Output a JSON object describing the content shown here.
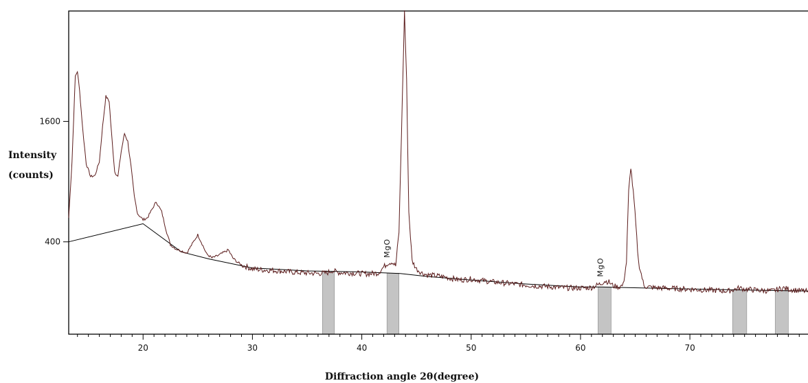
{
  "chart_data": {
    "type": "line",
    "title": "",
    "xlabel": "Diffraction angle 2θ(degree)",
    "ylabel_lines": [
      "Intensity",
      "(counts)"
    ],
    "xlim": [
      13.2,
      80.8
    ],
    "ylim": [
      -520,
      2700
    ],
    "x_ticks": [
      20,
      30,
      40,
      50,
      60,
      70
    ],
    "y_ticks": [
      400,
      1600
    ],
    "grid": false,
    "series": [
      {
        "role": "pattern",
        "x": [
          13.2,
          13.5,
          13.8,
          14.0,
          14.2,
          14.5,
          14.8,
          15.2,
          15.6,
          16.0,
          16.3,
          16.6,
          16.9,
          17.1,
          17.4,
          17.7,
          18.0,
          18.3,
          18.6,
          18.9,
          19.2,
          19.5,
          20.0,
          20.4,
          20.8,
          21.2,
          21.7,
          22.1,
          22.5,
          23.0,
          23.5,
          24.0,
          24.5,
          25.0,
          25.4,
          25.8,
          26.3,
          26.8,
          27.3,
          27.8,
          28.2,
          28.6,
          29.0,
          29.5,
          30.0,
          31.0,
          32.0,
          33.0,
          34.0,
          35.0,
          36.0,
          36.8,
          37.3,
          37.8,
          38.5,
          39.5,
          40.5,
          41.5,
          42.0,
          42.4,
          42.8,
          43.1,
          43.4,
          43.7,
          43.9,
          44.1,
          44.3,
          44.6,
          45.0,
          45.5,
          46.0,
          47.0,
          48.0,
          49.0,
          50.0,
          51.0,
          52.0,
          53.0,
          54.0,
          55.0,
          56.0,
          57.0,
          58.0,
          59.0,
          60.0,
          61.0,
          61.8,
          62.2,
          62.6,
          63.0,
          63.5,
          63.9,
          64.2,
          64.4,
          64.6,
          64.9,
          65.3,
          65.8,
          66.5,
          67.5,
          68.5,
          69.5,
          70.5,
          71.5,
          72.5,
          73.5,
          74.5,
          75.0,
          75.5,
          76.5,
          77.5,
          78.5,
          79.5,
          80.8
        ],
        "y": [
          640,
          1200,
          2050,
          2100,
          1900,
          1500,
          1180,
          1050,
          1060,
          1200,
          1550,
          1850,
          1800,
          1500,
          1100,
          1050,
          1300,
          1480,
          1400,
          1150,
          850,
          680,
          620,
          640,
          720,
          800,
          700,
          520,
          370,
          330,
          310,
          290,
          380,
          470,
          380,
          280,
          240,
          260,
          290,
          320,
          240,
          200,
          170,
          150,
          130,
          120,
          115,
          105,
          95,
          90,
          85,
          90,
          115,
          95,
          92,
          88,
          80,
          90,
          150,
          190,
          200,
          160,
          500,
          1800,
          2700,
          2000,
          700,
          210,
          130,
          90,
          70,
          60,
          40,
          20,
          30,
          15,
          0,
          -10,
          -20,
          -30,
          -40,
          -45,
          -55,
          -60,
          -60,
          -55,
          -20,
          10,
          0,
          -40,
          -50,
          -30,
          200,
          900,
          1150,
          800,
          200,
          -40,
          -55,
          -60,
          -65,
          -70,
          -75,
          -80,
          -85,
          -90,
          -60,
          -70,
          -75,
          -85,
          -90,
          -60,
          -80,
          -95
        ]
      },
      {
        "role": "background",
        "x": [
          13.2,
          20.0,
          23.5,
          26.0,
          30.0,
          35.0,
          40.0,
          43.5,
          46.0,
          50.0,
          55.0,
          60.0,
          62.0,
          66.0,
          70.0,
          75.0,
          80.8
        ],
        "y": [
          400,
          580,
          300,
          230,
          140,
          110,
          100,
          85,
          55,
          20,
          -20,
          -50,
          -50,
          -60,
          -70,
          -80,
          -90
        ]
      }
    ],
    "shaded_bands": [
      {
        "x0": 36.4,
        "x1": 37.5
      },
      {
        "x0": 42.3,
        "x1": 43.4
      },
      {
        "x0": 61.6,
        "x1": 62.8
      },
      {
        "x0": 73.9,
        "x1": 75.2
      },
      {
        "x0": 77.8,
        "x1": 79.0
      }
    ],
    "annotations": [
      {
        "text": "MgO",
        "x": 42.8,
        "y": 200
      },
      {
        "text": "MgO",
        "x": 62.3,
        "y": 10
      }
    ],
    "colors": {
      "pattern": "#5a1a1a",
      "background": "#000000",
      "band": "#c4c4c4",
      "band_edge": "#8a8a8a",
      "axes": "#000000"
    }
  }
}
